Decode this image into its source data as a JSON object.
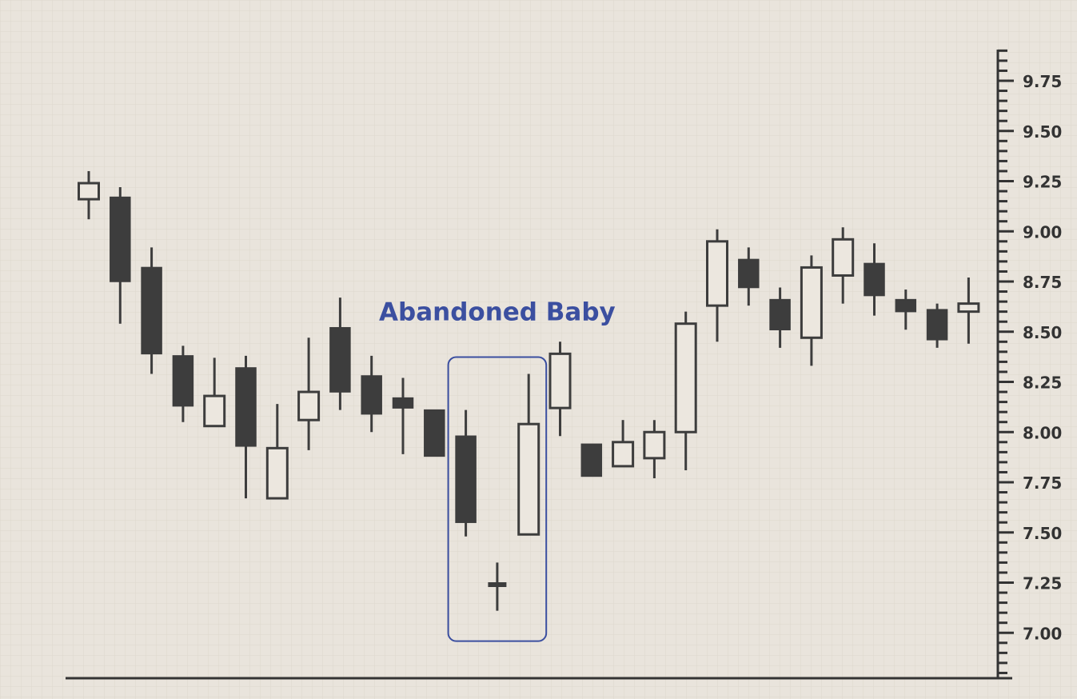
{
  "chart_data": {
    "type": "candlestick",
    "title": "",
    "xlabel": "",
    "ylabel": "",
    "ylim": [
      6.75,
      9.95
    ],
    "grid": true,
    "y_ticks": [
      "9.75",
      "9.50",
      "9.25",
      "9.00",
      "8.75",
      "8.50",
      "8.25",
      "8.00",
      "7.75",
      "7.50",
      "7.25",
      "7.00"
    ],
    "candles": [
      {
        "open": 9.16,
        "close": 9.24,
        "high": 9.3,
        "low": 9.06
      },
      {
        "open": 9.17,
        "close": 8.75,
        "high": 9.22,
        "low": 8.54
      },
      {
        "open": 8.82,
        "close": 8.39,
        "high": 8.92,
        "low": 8.29
      },
      {
        "open": 8.38,
        "close": 8.13,
        "high": 8.43,
        "low": 8.05
      },
      {
        "open": 8.03,
        "close": 8.18,
        "high": 8.37,
        "low": 8.03
      },
      {
        "open": 8.32,
        "close": 7.93,
        "high": 8.38,
        "low": 7.67
      },
      {
        "open": 7.67,
        "close": 7.92,
        "high": 8.14,
        "low": 7.67
      },
      {
        "open": 8.06,
        "close": 8.2,
        "high": 8.47,
        "low": 7.91
      },
      {
        "open": 8.52,
        "close": 8.2,
        "high": 8.67,
        "low": 8.11
      },
      {
        "open": 8.28,
        "close": 8.09,
        "high": 8.38,
        "low": 8.0
      },
      {
        "open": 8.17,
        "close": 8.12,
        "high": 8.27,
        "low": 7.89
      },
      {
        "open": 8.11,
        "close": 7.88,
        "high": 8.11,
        "low": 7.88
      },
      {
        "open": 7.98,
        "close": 7.55,
        "high": 8.11,
        "low": 7.48
      },
      {
        "open": 7.24,
        "close": 7.24,
        "high": 7.35,
        "low": 7.11
      },
      {
        "open": 7.49,
        "close": 8.04,
        "high": 8.29,
        "low": 7.49
      },
      {
        "open": 8.12,
        "close": 8.39,
        "high": 8.45,
        "low": 7.98
      },
      {
        "open": 7.94,
        "close": 7.78,
        "high": 7.94,
        "low": 7.78
      },
      {
        "open": 7.83,
        "close": 7.95,
        "high": 8.06,
        "low": 7.83
      },
      {
        "open": 7.87,
        "close": 8.0,
        "high": 8.06,
        "low": 7.77
      },
      {
        "open": 8.0,
        "close": 8.54,
        "high": 8.6,
        "low": 7.81
      },
      {
        "open": 8.63,
        "close": 8.95,
        "high": 9.01,
        "low": 8.45
      },
      {
        "open": 8.86,
        "close": 8.72,
        "high": 8.92,
        "low": 8.63
      },
      {
        "open": 8.66,
        "close": 8.51,
        "high": 8.72,
        "low": 8.42
      },
      {
        "open": 8.47,
        "close": 8.82,
        "high": 8.88,
        "low": 8.33
      },
      {
        "open": 8.78,
        "close": 8.96,
        "high": 9.02,
        "low": 8.64
      },
      {
        "open": 8.84,
        "close": 8.68,
        "high": 8.94,
        "low": 8.58
      },
      {
        "open": 8.66,
        "close": 8.6,
        "high": 8.71,
        "low": 8.51
      },
      {
        "open": 8.61,
        "close": 8.46,
        "high": 8.64,
        "low": 8.42
      },
      {
        "open": 8.6,
        "close": 8.64,
        "high": 8.77,
        "low": 8.44
      }
    ],
    "annotations": [
      {
        "text": "Abandoned Baby",
        "from": 12,
        "to": 14,
        "color": "#3b4fa0"
      }
    ],
    "colors": {
      "candle": "#3d3d3d",
      "hollow_fill": "#ece7df",
      "axis": "#333333",
      "grid": "#dcd6cc",
      "annotation": "#3b4fa0"
    }
  }
}
